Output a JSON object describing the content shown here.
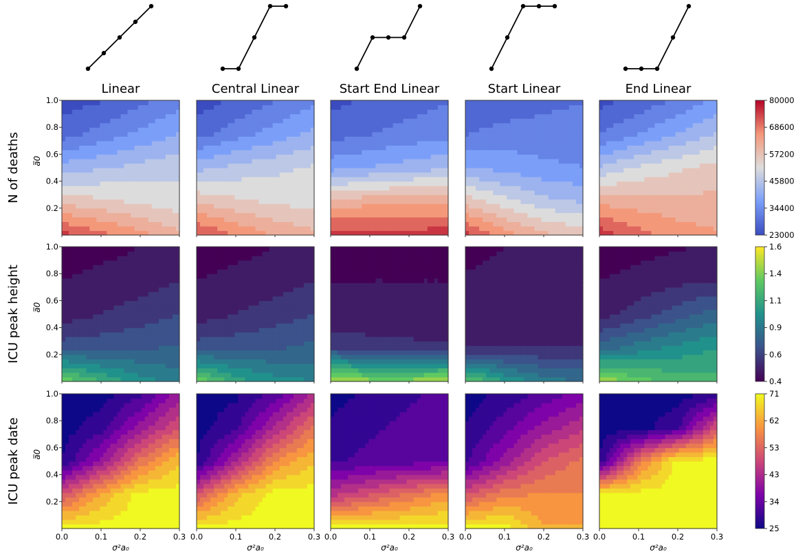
{
  "columns": [
    {
      "title": "Linear",
      "profile": [
        0,
        0.25,
        0.5,
        0.75,
        1.0
      ]
    },
    {
      "title": "Central Linear",
      "profile": [
        0,
        0,
        0.5,
        1.0,
        1.0
      ]
    },
    {
      "title": "Start End Linear",
      "profile": [
        0,
        0.5,
        0.5,
        0.5,
        1.0
      ]
    },
    {
      "title": "Start Linear",
      "profile": [
        0,
        0.5,
        1.0,
        1.0,
        1.0
      ]
    },
    {
      "title": "End Linear",
      "profile": [
        0,
        0,
        0,
        0.5,
        1.0
      ]
    }
  ],
  "rows": [
    {
      "title": "N of deaths",
      "ylabel": "a̅0",
      "colormap": "coolwarm",
      "colorbar_ticks": [
        "23000",
        "34400",
        "45800",
        "57200",
        "68600",
        "80000"
      ]
    },
    {
      "title": "ICU peak height",
      "ylabel": "a̅0",
      "colormap": "viridis",
      "colorbar_ticks": [
        "0.4",
        "0.6",
        "0.9",
        "1.1",
        "1.4",
        "1.6"
      ]
    },
    {
      "title": "ICU peak date",
      "ylabel": "a̅0",
      "colormap": "plasma",
      "colorbar_ticks": [
        "25",
        "34",
        "43",
        "53",
        "62",
        "71"
      ]
    }
  ],
  "x_axis": {
    "label": "σ²a₀",
    "ticks": [
      "0.0",
      "0.1",
      "0.2",
      "0.3"
    ]
  },
  "y_axis": {
    "ticks": [
      "0.2",
      "0.4",
      "0.6",
      "0.8",
      "1.0"
    ]
  },
  "chart_data": {
    "type": "heatmap",
    "x": [
      0.0,
      0.1,
      0.2,
      0.3
    ],
    "y": [
      0.2,
      0.4,
      0.6,
      0.8,
      1.0
    ],
    "xlim": [
      0.0,
      0.3
    ],
    "ylim": [
      0.0,
      1.0
    ],
    "rows": [
      {
        "name": "N of deaths",
        "range": [
          23000,
          80000
        ],
        "panels": {
          "Linear": [
            [
              75000,
              70000,
              65000,
              60000
            ],
            [
              57000,
              55000,
              53000,
              51000
            ],
            [
              42000,
              44000,
              46000,
              48000
            ],
            [
              28000,
              32000,
              36000,
              40000
            ],
            [
              23000,
              25000,
              29000,
              33000
            ]
          ],
          "Central Linear": [
            [
              74000,
              68000,
              63000,
              60000
            ],
            [
              58000,
              55000,
              53000,
              52000
            ],
            [
              43000,
              46000,
              48000,
              50000
            ],
            [
              28000,
              33000,
              37000,
              41000
            ],
            [
              23000,
              26000,
              30000,
              34000
            ]
          ],
          "Start End Linear": [
            [
              76000,
              75000,
              75000,
              76000
            ],
            [
              60000,
              62000,
              63000,
              62000
            ],
            [
              38000,
              40000,
              42000,
              44000
            ],
            [
              28000,
              30000,
              32000,
              33000
            ],
            [
              24000,
              26000,
              28000,
              30000
            ]
          ],
          "Start Linear": [
            [
              75000,
              66000,
              60000,
              57000
            ],
            [
              57000,
              51000,
              46000,
              44000
            ],
            [
              40000,
              38000,
              36000,
              35000
            ],
            [
              30000,
              32000,
              32000,
              32000
            ],
            [
              25000,
              27000,
              29000,
              30000
            ]
          ],
          "End Linear": [
            [
              76000,
              70000,
              66000,
              64000
            ],
            [
              62000,
              61000,
              60000,
              60000
            ],
            [
              45000,
              50000,
              53000,
              56000
            ],
            [
              30000,
              35000,
              40000,
              45000
            ],
            [
              24000,
              27000,
              31000,
              36000
            ]
          ]
        }
      },
      {
        "name": "ICU peak height",
        "range": [
          0.4,
          1.6
        ],
        "panels": {
          "Linear": [
            [
              1.35,
              1.15,
              1.0,
              0.9
            ],
            [
              0.7,
              0.72,
              0.74,
              0.76
            ],
            [
              0.5,
              0.55,
              0.6,
              0.65
            ],
            [
              0.45,
              0.48,
              0.5,
              0.55
            ],
            [
              0.4,
              0.42,
              0.45,
              0.48
            ]
          ],
          "Central Linear": [
            [
              1.35,
              1.1,
              1.0,
              0.95
            ],
            [
              0.7,
              0.72,
              0.74,
              0.78
            ],
            [
              0.5,
              0.55,
              0.6,
              0.65
            ],
            [
              0.45,
              0.48,
              0.5,
              0.55
            ],
            [
              0.4,
              0.42,
              0.45,
              0.48
            ]
          ],
          "Start End Linear": [
            [
              1.45,
              1.4,
              1.4,
              1.45
            ],
            [
              0.65,
              0.6,
              0.58,
              0.57
            ],
            [
              0.46,
              0.47,
              0.47,
              0.47
            ],
            [
              0.45,
              0.45,
              0.45,
              0.45
            ],
            [
              0.4,
              0.42,
              0.43,
              0.44
            ]
          ],
          "Start Linear": [
            [
              1.3,
              1.05,
              0.9,
              0.85
            ],
            [
              0.55,
              0.55,
              0.55,
              0.55
            ],
            [
              0.5,
              0.52,
              0.54,
              0.55
            ],
            [
              0.46,
              0.48,
              0.5,
              0.52
            ],
            [
              0.42,
              0.45,
              0.46,
              0.48
            ]
          ],
          "End Linear": [
            [
              1.45,
              1.3,
              1.22,
              1.18
            ],
            [
              0.8,
              0.9,
              0.98,
              1.05
            ],
            [
              0.5,
              0.6,
              0.7,
              0.8
            ],
            [
              0.45,
              0.48,
              0.52,
              0.55
            ],
            [
              0.4,
              0.42,
              0.44,
              0.46
            ]
          ]
        }
      },
      {
        "name": "ICU peak date",
        "range": [
          25,
          71
        ],
        "panels": {
          "Linear": [
            [
              71,
              71,
              71,
              71
            ],
            [
              50,
              62,
              71,
              71
            ],
            [
              27,
              40,
              55,
              65
            ],
            [
              25,
              29,
              40,
              50
            ],
            [
              25,
              25,
              30,
              40
            ]
          ],
          "Central Linear": [
            [
              71,
              71,
              71,
              71
            ],
            [
              50,
              64,
              71,
              71
            ],
            [
              27,
              42,
              58,
              65
            ],
            [
              25,
              30,
              43,
              55
            ],
            [
              25,
              26,
              32,
              43
            ]
          ],
          "Start End Linear": [
            [
              71,
              71,
              71,
              71
            ],
            [
              45,
              50,
              55,
              60
            ],
            [
              30,
              32,
              33,
              34
            ],
            [
              28,
              30,
              32,
              32
            ],
            [
              25,
              28,
              30,
              32
            ]
          ],
          "Start Linear": [
            [
              71,
              71,
              62,
              62
            ],
            [
              50,
              57,
              58,
              58
            ],
            [
              30,
              40,
              50,
              55
            ],
            [
              27,
              33,
              40,
              45
            ],
            [
              25,
              28,
              32,
              36
            ]
          ],
          "End Linear": [
            [
              71,
              71,
              71,
              71
            ],
            [
              71,
              71,
              71,
              71
            ],
            [
              27,
              55,
              71,
              71
            ],
            [
              25,
              25,
              30,
              50
            ],
            [
              25,
              25,
              25,
              28
            ]
          ]
        }
      }
    ]
  }
}
